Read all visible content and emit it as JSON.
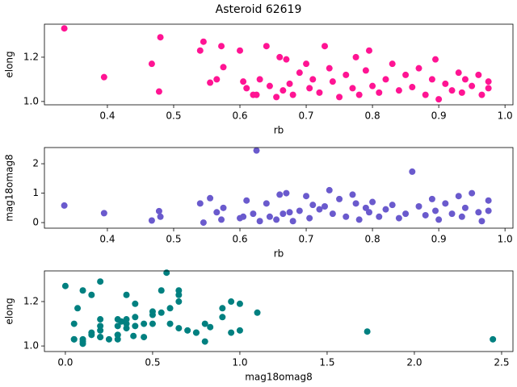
{
  "chart_data": [
    {
      "type": "scatter",
      "title": "Asteroid 62619",
      "x_label": "rb",
      "y_label": "elong",
      "color": "#ff1493",
      "x": [
        0.335,
        0.395,
        0.467,
        0.48,
        0.478,
        0.54,
        0.545,
        0.555,
        0.565,
        0.572,
        0.575,
        0.6,
        0.605,
        0.61,
        0.62,
        0.625,
        0.63,
        0.64,
        0.645,
        0.655,
        0.66,
        0.665,
        0.67,
        0.675,
        0.68,
        0.69,
        0.7,
        0.705,
        0.71,
        0.72,
        0.728,
        0.735,
        0.74,
        0.75,
        0.76,
        0.77,
        0.775,
        0.78,
        0.79,
        0.795,
        0.8,
        0.81,
        0.82,
        0.83,
        0.84,
        0.85,
        0.86,
        0.87,
        0.88,
        0.89,
        0.895,
        0.9,
        0.91,
        0.92,
        0.93,
        0.935,
        0.94,
        0.95,
        0.96,
        0.965,
        0.975,
        0.975
      ],
      "values": [
        1.33,
        1.11,
        1.17,
        1.29,
        1.045,
        1.23,
        1.27,
        1.085,
        1.1,
        1.25,
        1.155,
        1.23,
        1.09,
        1.06,
        1.03,
        1.03,
        1.1,
        1.25,
        1.07,
        1.02,
        1.2,
        1.05,
        1.19,
        1.08,
        1.03,
        1.13,
        1.17,
        1.06,
        1.1,
        1.04,
        1.25,
        1.15,
        1.09,
        1.02,
        1.12,
        1.06,
        1.2,
        1.03,
        1.14,
        1.23,
        1.07,
        1.04,
        1.1,
        1.17,
        1.05,
        1.12,
        1.065,
        1.15,
        1.03,
        1.1,
        1.19,
        1.01,
        1.08,
        1.05,
        1.13,
        1.04,
        1.1,
        1.07,
        1.12,
        1.03,
        1.06,
        1.09
      ],
      "xlim": [
        0.305,
        1.012
      ],
      "ylim": [
        0.985,
        1.349
      ],
      "xticks": [
        0.4,
        0.5,
        0.6,
        0.7,
        0.8,
        0.9,
        {
          "value": 1.0,
          "label": "1.0"
        }
      ],
      "yticks": [
        {
          "value": 1.0,
          "label": "1.0"
        },
        1.2
      ]
    },
    {
      "type": "scatter",
      "x_label": "rb",
      "y_label": "mag18omag8",
      "color": "#6a5acd",
      "x": [
        0.335,
        0.395,
        0.467,
        0.48,
        0.478,
        0.54,
        0.545,
        0.555,
        0.565,
        0.572,
        0.575,
        0.6,
        0.605,
        0.61,
        0.62,
        0.625,
        0.63,
        0.64,
        0.645,
        0.655,
        0.66,
        0.665,
        0.67,
        0.675,
        0.68,
        0.69,
        0.7,
        0.705,
        0.71,
        0.72,
        0.728,
        0.735,
        0.74,
        0.75,
        0.76,
        0.77,
        0.775,
        0.78,
        0.79,
        0.795,
        0.8,
        0.81,
        0.82,
        0.83,
        0.84,
        0.85,
        0.86,
        0.87,
        0.88,
        0.89,
        0.895,
        0.9,
        0.91,
        0.92,
        0.93,
        0.935,
        0.94,
        0.95,
        0.96,
        0.965,
        0.975,
        0.975
      ],
      "values": [
        0.58,
        0.32,
        0.07,
        0.2,
        0.39,
        0.65,
        0.0,
        0.83,
        0.35,
        0.1,
        0.5,
        0.15,
        0.2,
        0.75,
        0.3,
        2.45,
        0.05,
        0.65,
        0.2,
        0.1,
        0.95,
        0.3,
        1.0,
        0.35,
        0.05,
        0.4,
        0.9,
        0.15,
        0.6,
        0.45,
        0.55,
        1.1,
        0.3,
        0.8,
        0.2,
        0.95,
        0.65,
        0.1,
        0.5,
        0.35,
        0.7,
        0.2,
        0.45,
        0.6,
        0.15,
        0.3,
        1.73,
        0.55,
        0.25,
        0.8,
        0.4,
        0.1,
        0.65,
        0.3,
        0.9,
        0.2,
        0.5,
        1.0,
        0.35,
        0.05,
        0.75,
        0.4
      ],
      "xlim": [
        0.305,
        1.012
      ],
      "ylim": [
        -0.19,
        2.55
      ],
      "xticks": [
        0.4,
        0.5,
        0.6,
        0.7,
        0.8,
        0.9,
        {
          "value": 1.0,
          "label": "1.0"
        }
      ],
      "yticks": [
        0,
        1,
        2
      ]
    },
    {
      "type": "scatter",
      "x_label": "mag18omag8",
      "y_label": "elong",
      "color": "#008080",
      "x": [
        0.58,
        0.32,
        0.07,
        0.2,
        0.39,
        0.65,
        0.0,
        0.83,
        0.35,
        0.1,
        0.5,
        0.15,
        0.2,
        0.75,
        0.3,
        2.45,
        0.05,
        0.65,
        0.2,
        0.1,
        0.95,
        0.3,
        1.0,
        0.35,
        0.05,
        0.4,
        0.9,
        0.15,
        0.6,
        0.45,
        0.55,
        1.1,
        0.3,
        0.8,
        0.2,
        0.95,
        0.65,
        0.1,
        0.5,
        0.35,
        0.7,
        0.2,
        0.45,
        0.6,
        0.15,
        0.3,
        1.73,
        0.55,
        0.25,
        0.8,
        0.4,
        0.1,
        0.65,
        0.3,
        0.9,
        0.2,
        0.5,
        1.0,
        0.35,
        0.05,
        0.75,
        0.4
      ],
      "values": [
        1.33,
        1.11,
        1.17,
        1.29,
        1.045,
        1.23,
        1.27,
        1.085,
        1.1,
        1.25,
        1.155,
        1.23,
        1.09,
        1.06,
        1.03,
        1.03,
        1.1,
        1.25,
        1.07,
        1.02,
        1.2,
        1.05,
        1.19,
        1.08,
        1.03,
        1.13,
        1.17,
        1.06,
        1.1,
        1.04,
        1.25,
        1.15,
        1.09,
        1.02,
        1.12,
        1.06,
        1.2,
        1.03,
        1.14,
        1.23,
        1.07,
        1.04,
        1.1,
        1.17,
        1.05,
        1.12,
        1.065,
        1.15,
        1.03,
        1.1,
        1.19,
        1.01,
        1.08,
        1.05,
        1.13,
        1.04,
        1.1,
        1.07,
        1.12,
        1.03,
        1.06,
        1.09
      ],
      "xlim": [
        -0.12,
        2.565
      ],
      "ylim": [
        0.975,
        1.338
      ],
      "xticks": [
        {
          "value": 0.0,
          "label": "0.0"
        },
        0.5,
        {
          "value": 1.0,
          "label": "1.0"
        },
        1.5,
        {
          "value": 2.0,
          "label": "2.0"
        },
        2.5
      ],
      "yticks": [
        {
          "value": 1.0,
          "label": "1.0"
        },
        1.2
      ]
    }
  ]
}
